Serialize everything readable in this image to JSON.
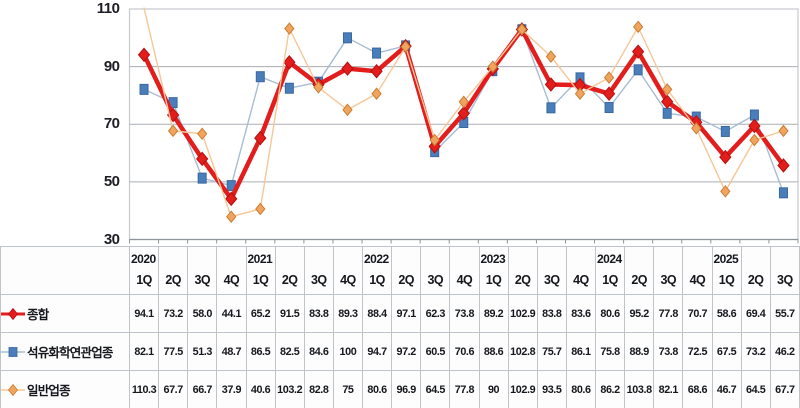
{
  "chart_data": {
    "type": "line",
    "title": "",
    "ylabel": "",
    "xlabel": "",
    "ylim": [
      30,
      110
    ],
    "y_ticks": [
      "110",
      "90",
      "70",
      "50",
      "30"
    ],
    "gridlines": [
      90,
      70,
      50
    ],
    "grid": true,
    "legend_position": "table-left",
    "x_groups": [
      {
        "label": "2020",
        "quarters": [
          "1Q",
          "2Q",
          "3Q",
          "4Q"
        ]
      },
      {
        "label": "2021",
        "quarters": [
          "1Q",
          "2Q",
          "3Q",
          "4Q"
        ]
      },
      {
        "label": "2022",
        "quarters": [
          "1Q",
          "2Q",
          "3Q",
          "4Q"
        ]
      },
      {
        "label": "2023",
        "quarters": [
          "1Q",
          "2Q",
          "3Q",
          "4Q"
        ]
      },
      {
        "label": "2024",
        "quarters": [
          "1Q",
          "2Q",
          "3Q",
          "4Q"
        ]
      },
      {
        "label": "2025",
        "quarters": [
          "1Q",
          "2Q",
          "3Q"
        ]
      }
    ],
    "draw_order": [
      1,
      0,
      2
    ],
    "series": [
      {
        "name": "종합",
        "marker": "diamond",
        "marker_w": 11,
        "marker_h": 13,
        "fill": "#e21d1c",
        "marker_stroke": "#b21010",
        "line_color": "#e21d1c",
        "line_width": 4.5,
        "values": [
          "94.1",
          "73.2",
          "58.0",
          "44.1",
          "65.2",
          "91.5",
          "83.8",
          "89.3",
          "88.4",
          "97.1",
          "62.3",
          "73.8",
          "89.2",
          "102.9",
          "83.8",
          "83.6",
          "80.6",
          "95.2",
          "77.8",
          "70.7",
          "58.6",
          "69.4",
          "55.7"
        ]
      },
      {
        "name": "석유화학연관업종",
        "marker": "square",
        "marker_w": 8,
        "marker_h": 10,
        "fill": "#4a7ebb",
        "marker_stroke": "#3a67a0",
        "line_color": "#a8bcd3",
        "line_width": 1.4,
        "values": [
          "82.1",
          "77.5",
          "51.3",
          "48.7",
          "86.5",
          "82.5",
          "84.6",
          "100",
          "94.7",
          "97.2",
          "60.5",
          "70.6",
          "88.6",
          "102.8",
          "75.7",
          "86.1",
          "75.8",
          "88.9",
          "73.8",
          "72.5",
          "67.5",
          "73.2",
          "46.2"
        ]
      },
      {
        "name": "일반업종",
        "marker": "diamond",
        "marker_w": 9,
        "marker_h": 11,
        "fill": "#f1a45e",
        "marker_stroke": "#c97e33",
        "line_color": "#f6c697",
        "line_width": 1.4,
        "values": [
          "110.3",
          "67.7",
          "66.7",
          "37.9",
          "40.6",
          "103.2",
          "82.8",
          "75",
          "80.6",
          "96.9",
          "64.5",
          "77.8",
          "90",
          "102.9",
          "93.5",
          "80.6",
          "86.2",
          "103.8",
          "82.1",
          "68.6",
          "46.7",
          "64.5",
          "67.7"
        ]
      }
    ],
    "colors": {
      "grid": "#aaadb3",
      "axis": "#8f939a",
      "plot_border": "#c6c9ce",
      "table_border": "#bfc3ca",
      "text": "#15171c"
    }
  }
}
